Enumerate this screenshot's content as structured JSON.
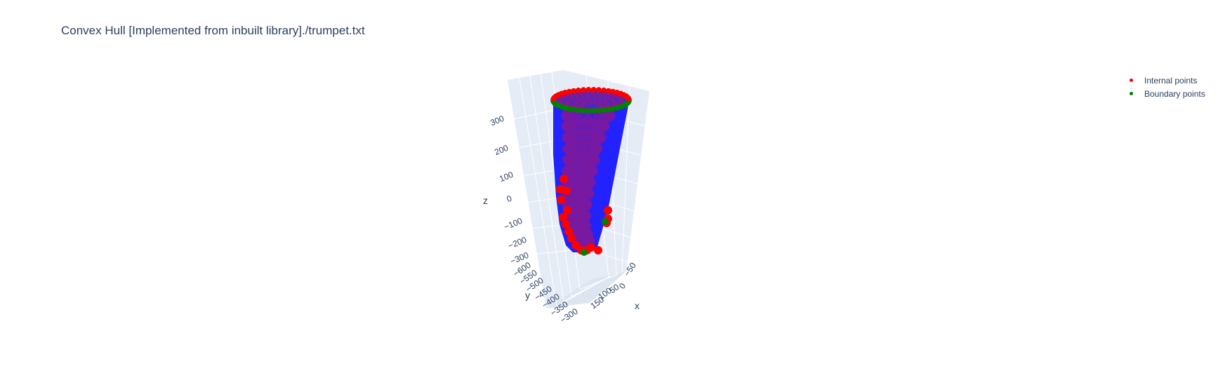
{
  "chart_data": {
    "type": "scatter",
    "title": "Convex Hull [Implemented from inbuilt library]./trumpet.txt",
    "axes": {
      "x": {
        "label": "x",
        "ticks": [
          "−50",
          "0",
          "50",
          "100",
          "150"
        ]
      },
      "y": {
        "label": "y",
        "ticks": [
          "−600",
          "−550",
          "−500",
          "−450",
          "−400",
          "−350",
          "−300"
        ]
      },
      "z": {
        "label": "z",
        "ticks": [
          "−300",
          "−200",
          "−100",
          "0",
          "100",
          "200",
          "300"
        ]
      }
    },
    "legend_position": "top-right",
    "series": [
      {
        "name": "Internal points",
        "color": "#ff0000",
        "marker": "circle"
      },
      {
        "name": "Boundary points",
        "color": "#008000",
        "marker": "circle"
      }
    ],
    "hull_mesh": {
      "color": "#0000ff"
    },
    "grid": true,
    "scene_background": "#e5ecf6"
  }
}
